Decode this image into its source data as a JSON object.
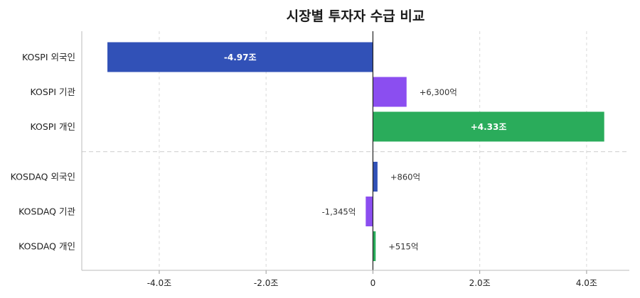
{
  "chart_data": {
    "type": "bar",
    "orientation": "horizontal",
    "title": "시장별 투자자 수급 비교",
    "categories": [
      "KOSPI 외국인",
      "KOSPI 기관",
      "KOSPI 개인",
      "KOSDAQ 외국인",
      "KOSDAQ 기관",
      "KOSDAQ 개인"
    ],
    "values": [
      -4.97,
      0.63,
      4.33,
      0.086,
      -0.1345,
      0.0515
    ],
    "value_unit": "조원",
    "data_labels": [
      "-4.97조",
      "+6,300억",
      "+4.33조",
      "+860억",
      "-1,345억",
      "+515억"
    ],
    "colors": [
      "#3151b7",
      "#8b4ef0",
      "#2aac5b",
      "#3151b7",
      "#8b4ef0",
      "#2aac5b"
    ],
    "xlim": [
      -5.45,
      4.8
    ],
    "xticks": [
      -4.0,
      -2.0,
      0,
      2.0,
      4.0
    ],
    "xtick_labels": [
      "-4.0조",
      "-2.0조",
      "0",
      "2.0조",
      "4.0조"
    ],
    "grid": true,
    "group_separator_after_index": 2
  }
}
